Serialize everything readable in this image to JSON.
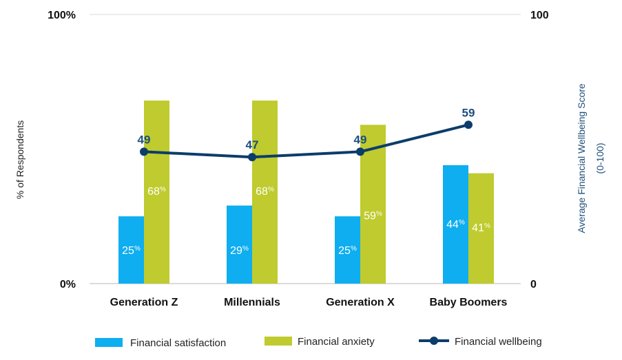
{
  "chart_data": {
    "type": "bar",
    "categories": [
      "Generation Z",
      "Millennials",
      "Generation X",
      "Baby Boomers"
    ],
    "series": [
      {
        "name": "Financial satisfaction",
        "kind": "bar",
        "axis": "left",
        "color": "#0eaef0",
        "values": [
          25,
          29,
          25,
          44
        ],
        "labels": [
          "25",
          "29",
          "25",
          "44"
        ]
      },
      {
        "name": "Financial anxiety",
        "kind": "bar",
        "axis": "left",
        "color": "#bfcb2e",
        "values": [
          68,
          68,
          59,
          41
        ],
        "labels": [
          "68",
          "68",
          "59",
          "41"
        ]
      },
      {
        "name": "Financial wellbeing",
        "kind": "line",
        "axis": "right",
        "color": "#0b3d6b",
        "values": [
          49,
          47,
          49,
          59
        ],
        "labels": [
          "49",
          "47",
          "49",
          "59"
        ]
      }
    ],
    "percent_sign": "%",
    "y_left": {
      "ylim": [
        0,
        100
      ],
      "tick_labels": [
        "0%",
        "100%"
      ],
      "label": "% of Respondents"
    },
    "y_right": {
      "ylim": [
        0,
        100
      ],
      "tick_labels": [
        "0",
        "100"
      ],
      "label_line1": "Average Financial Wellbeing Score",
      "label_line2": "(0-100)"
    },
    "legend_position": "bottom"
  }
}
